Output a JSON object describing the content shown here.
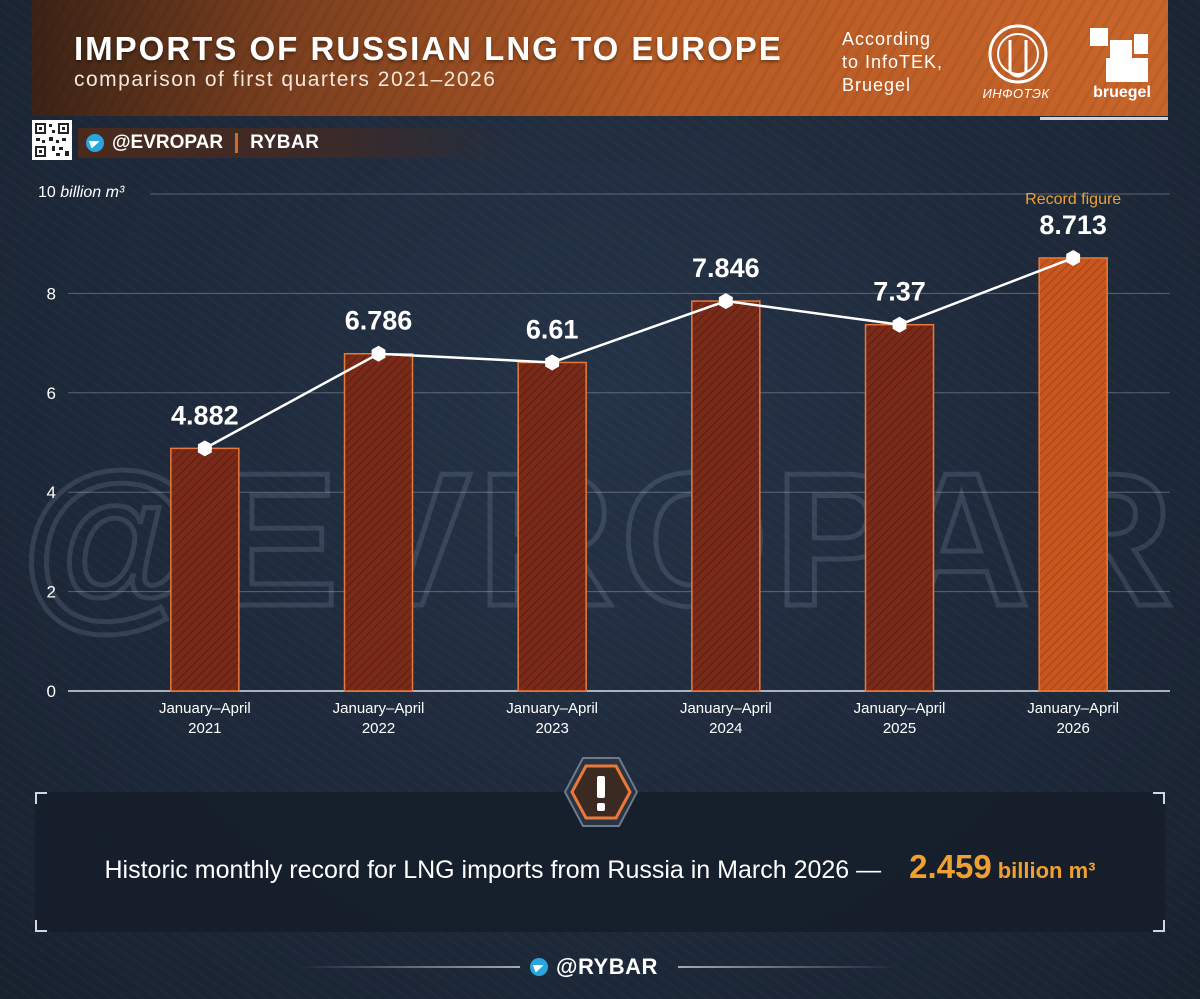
{
  "header": {
    "title": "IMPORTS OF RUSSIAN LNG TO EUROPE",
    "subtitle": "comparison of first quarters 2021–2026",
    "source_lines": [
      "According",
      "to InfoTEK,",
      "Bruegel"
    ],
    "infotek_logo_text": "ИНФОТЭК",
    "bruegel_logo_text": "bruegel"
  },
  "social": {
    "handle": "@EVROPAR",
    "brand": "RYBAR",
    "telegram_icon": "telegram-icon",
    "qr_icon": "qr-code-icon"
  },
  "watermark": "@EVROPAR",
  "colors": {
    "bar_fill": "#7a2a18",
    "bar_record_fill": "#c9561f",
    "bar_stroke": "#e8793a",
    "line": "#ffffff",
    "accent": "#f0a030",
    "background": "#1f2b3c"
  },
  "chart_data": {
    "type": "bar",
    "title": "IMPORTS OF RUSSIAN LNG TO EUROPE",
    "subtitle": "comparison of first quarters 2021–2026",
    "y_axis_top_label_number": "10",
    "y_axis_unit": "billion m³",
    "ylim": [
      0,
      10
    ],
    "yticks": [
      0,
      2,
      4,
      6,
      8
    ],
    "grid": true,
    "categories": [
      [
        "January–April",
        "2021"
      ],
      [
        "January–April",
        "2022"
      ],
      [
        "January–April",
        "2023"
      ],
      [
        "January–April",
        "2024"
      ],
      [
        "January–April",
        "2025"
      ],
      [
        "January–April",
        "2026"
      ]
    ],
    "values": [
      4.882,
      6.786,
      6.61,
      7.846,
      7.37,
      8.713
    ],
    "data_labels": [
      "4.882",
      "6.786",
      "6.61",
      "7.846",
      "7.37",
      "8.713"
    ],
    "overlay_line": true,
    "annotations": [
      {
        "category_index": 5,
        "text": "Record figure"
      }
    ]
  },
  "note": {
    "icon": "exclamation-warning-icon",
    "text": "Historic monthly record for LNG imports from Russia in March 2026 —",
    "value": "2.459",
    "unit": "billion m³"
  },
  "footer": {
    "brand": "@RYBAR",
    "icon": "telegram-icon"
  }
}
